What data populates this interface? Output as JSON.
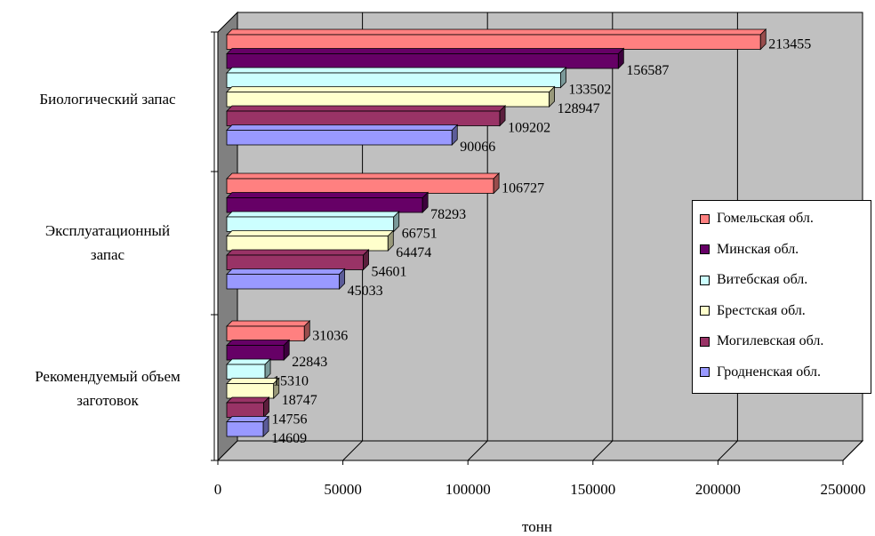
{
  "chart_data": {
    "type": "bar",
    "orientation": "horizontal",
    "three_d": true,
    "categories": [
      "Биологический запас",
      "Эксплуатационный запас",
      "Рекомендуемый объем заготовок"
    ],
    "series": [
      {
        "name": "Гомельская обл.",
        "color": "#ff8080",
        "values": [
          213455,
          106727,
          31036
        ]
      },
      {
        "name": "Минская обл.",
        "color": "#660066",
        "values": [
          156587,
          78293,
          22843
        ]
      },
      {
        "name": "Витебская обл.",
        "color": "#ccffff",
        "values": [
          133502,
          66751,
          15310
        ]
      },
      {
        "name": "Брестская обл.",
        "color": "#ffffcc",
        "values": [
          128947,
          64474,
          18747
        ]
      },
      {
        "name": "Могилевская обл.",
        "color": "#993366",
        "values": [
          109202,
          54601,
          14756
        ]
      },
      {
        "name": "Гродненская обл.",
        "color": "#9999ff",
        "values": [
          90066,
          45033,
          14609
        ]
      }
    ],
    "xlabel": "тонн",
    "ylabel": "",
    "xlim": [
      0,
      250000
    ],
    "x_ticks": [
      "0",
      "50000",
      "100000",
      "150000",
      "200000",
      "250000"
    ],
    "grid": true,
    "legend_position": "right",
    "data_labels": true,
    "colors": {
      "wall": "#c0c0c0",
      "floor": "#c0c0c0",
      "side_wall": "#808080",
      "grid": "#000000"
    }
  }
}
